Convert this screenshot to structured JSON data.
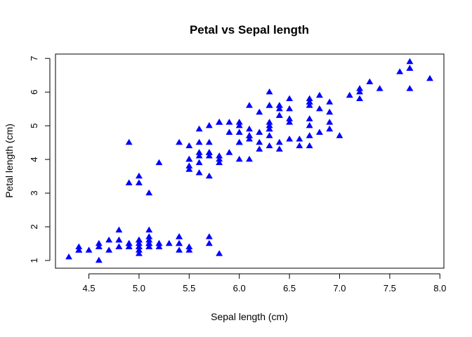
{
  "chart_data": {
    "type": "scatter",
    "title": "Petal vs Sepal length",
    "xlabel": "Sepal length (cm)",
    "ylabel": "Petal length (cm)",
    "xlim": [
      4.3,
      7.9
    ],
    "ylim": [
      1.0,
      6.9
    ],
    "x_ticks": [
      "4.5",
      "5.0",
      "5.5",
      "6.0",
      "6.5",
      "7.0",
      "7.5",
      "8.0"
    ],
    "y_ticks": [
      "1",
      "2",
      "3",
      "4",
      "5",
      "6",
      "7"
    ],
    "grid": false,
    "legend": false,
    "marker": "triangle",
    "color": "#0000ff",
    "points": [
      [
        5.1,
        1.4
      ],
      [
        4.9,
        1.4
      ],
      [
        4.7,
        1.3
      ],
      [
        4.6,
        1.5
      ],
      [
        5.0,
        1.4
      ],
      [
        5.4,
        1.7
      ],
      [
        4.6,
        1.4
      ],
      [
        5.0,
        1.5
      ],
      [
        4.4,
        1.4
      ],
      [
        4.9,
        1.5
      ],
      [
        5.4,
        1.5
      ],
      [
        4.8,
        1.6
      ],
      [
        4.8,
        1.4
      ],
      [
        4.3,
        1.1
      ],
      [
        5.8,
        1.2
      ],
      [
        5.7,
        1.5
      ],
      [
        5.4,
        1.3
      ],
      [
        5.1,
        1.4
      ],
      [
        5.7,
        1.7
      ],
      [
        5.1,
        1.5
      ],
      [
        5.4,
        1.7
      ],
      [
        5.1,
        1.5
      ],
      [
        4.6,
        1.0
      ],
      [
        5.1,
        1.7
      ],
      [
        4.8,
        1.9
      ],
      [
        5.0,
        1.6
      ],
      [
        5.0,
        1.6
      ],
      [
        5.2,
        1.5
      ],
      [
        5.2,
        1.4
      ],
      [
        4.7,
        1.6
      ],
      [
        4.8,
        1.6
      ],
      [
        5.4,
        1.5
      ],
      [
        5.2,
        1.5
      ],
      [
        5.5,
        1.4
      ],
      [
        4.9,
        1.5
      ],
      [
        5.0,
        1.2
      ],
      [
        5.5,
        1.3
      ],
      [
        4.9,
        1.4
      ],
      [
        4.4,
        1.3
      ],
      [
        5.1,
        1.5
      ],
      [
        5.0,
        1.3
      ],
      [
        4.5,
        1.3
      ],
      [
        4.4,
        1.3
      ],
      [
        5.0,
        1.6
      ],
      [
        5.1,
        1.9
      ],
      [
        4.8,
        1.4
      ],
      [
        5.1,
        1.6
      ],
      [
        4.6,
        1.4
      ],
      [
        5.3,
        1.5
      ],
      [
        5.0,
        1.4
      ],
      [
        7.0,
        4.7
      ],
      [
        6.4,
        4.5
      ],
      [
        6.9,
        4.9
      ],
      [
        5.5,
        4.0
      ],
      [
        6.5,
        4.6
      ],
      [
        5.7,
        4.5
      ],
      [
        6.3,
        4.7
      ],
      [
        4.9,
        3.3
      ],
      [
        6.6,
        4.6
      ],
      [
        5.2,
        3.9
      ],
      [
        5.0,
        3.5
      ],
      [
        5.9,
        4.2
      ],
      [
        6.0,
        4.0
      ],
      [
        6.1,
        4.7
      ],
      [
        5.6,
        3.6
      ],
      [
        6.7,
        4.4
      ],
      [
        5.6,
        4.5
      ],
      [
        5.8,
        4.1
      ],
      [
        6.2,
        4.5
      ],
      [
        5.6,
        3.9
      ],
      [
        5.9,
        4.8
      ],
      [
        6.1,
        4.0
      ],
      [
        6.3,
        4.9
      ],
      [
        6.1,
        4.7
      ],
      [
        6.4,
        4.3
      ],
      [
        6.6,
        4.4
      ],
      [
        6.8,
        4.8
      ],
      [
        6.7,
        5.0
      ],
      [
        6.0,
        4.5
      ],
      [
        5.7,
        3.5
      ],
      [
        5.5,
        3.8
      ],
      [
        5.5,
        3.7
      ],
      [
        5.8,
        3.9
      ],
      [
        6.0,
        5.1
      ],
      [
        5.4,
        4.5
      ],
      [
        6.0,
        4.5
      ],
      [
        6.7,
        4.7
      ],
      [
        6.3,
        4.4
      ],
      [
        5.6,
        4.1
      ],
      [
        5.5,
        4.0
      ],
      [
        5.5,
        4.4
      ],
      [
        6.1,
        4.6
      ],
      [
        5.8,
        4.0
      ],
      [
        5.0,
        3.3
      ],
      [
        5.6,
        4.2
      ],
      [
        5.7,
        4.2
      ],
      [
        5.7,
        4.2
      ],
      [
        6.2,
        4.3
      ],
      [
        5.1,
        3.0
      ],
      [
        5.7,
        4.1
      ],
      [
        6.3,
        6.0
      ],
      [
        5.8,
        5.1
      ],
      [
        7.1,
        5.9
      ],
      [
        6.3,
        5.6
      ],
      [
        6.5,
        5.8
      ],
      [
        7.6,
        6.6
      ],
      [
        4.9,
        4.5
      ],
      [
        7.3,
        6.3
      ],
      [
        6.7,
        5.8
      ],
      [
        7.2,
        6.1
      ],
      [
        6.5,
        5.1
      ],
      [
        6.4,
        5.3
      ],
      [
        6.8,
        5.5
      ],
      [
        5.7,
        5.0
      ],
      [
        5.8,
        5.1
      ],
      [
        6.4,
        5.3
      ],
      [
        6.5,
        5.5
      ],
      [
        7.7,
        6.7
      ],
      [
        7.7,
        6.9
      ],
      [
        6.0,
        5.0
      ],
      [
        6.9,
        5.7
      ],
      [
        5.6,
        4.9
      ],
      [
        7.7,
        6.7
      ],
      [
        6.3,
        4.9
      ],
      [
        6.7,
        5.7
      ],
      [
        7.2,
        6.0
      ],
      [
        6.2,
        4.8
      ],
      [
        6.1,
        4.9
      ],
      [
        6.4,
        5.6
      ],
      [
        7.2,
        5.8
      ],
      [
        7.4,
        6.1
      ],
      [
        7.9,
        6.4
      ],
      [
        6.4,
        5.6
      ],
      [
        6.3,
        5.1
      ],
      [
        6.1,
        5.6
      ],
      [
        7.7,
        6.1
      ],
      [
        6.3,
        5.6
      ],
      [
        6.4,
        5.5
      ],
      [
        6.0,
        4.8
      ],
      [
        6.9,
        5.4
      ],
      [
        6.7,
        5.6
      ],
      [
        6.9,
        5.1
      ],
      [
        5.8,
        5.1
      ],
      [
        6.8,
        5.9
      ],
      [
        6.7,
        5.7
      ],
      [
        6.7,
        5.2
      ],
      [
        6.3,
        5.0
      ],
      [
        6.5,
        5.2
      ],
      [
        6.2,
        5.4
      ],
      [
        5.9,
        5.1
      ]
    ]
  }
}
